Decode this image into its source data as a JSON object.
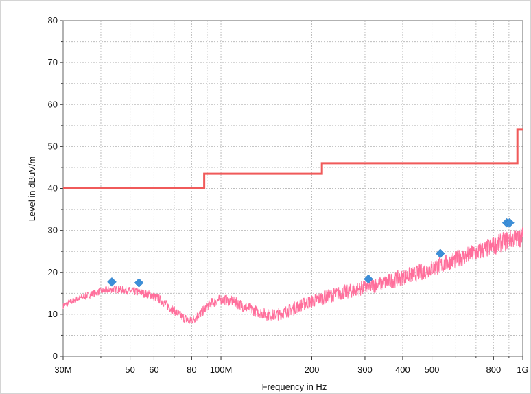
{
  "chart_data": {
    "type": "line",
    "title": "",
    "xlabel": "Frequency in Hz",
    "ylabel": "Level in dBuV/m",
    "x_scale": "log",
    "x_range_hz": [
      30000000,
      1000000000
    ],
    "ylim": [
      0,
      80
    ],
    "grid": true,
    "x_tick_labels": [
      {
        "value": 30000000,
        "label": "30M"
      },
      {
        "value": 50000000,
        "label": "50"
      },
      {
        "value": 60000000,
        "label": "60"
      },
      {
        "value": 80000000,
        "label": "80"
      },
      {
        "value": 100000000,
        "label": "100M"
      },
      {
        "value": 200000000,
        "label": "200"
      },
      {
        "value": 300000000,
        "label": "300"
      },
      {
        "value": 400000000,
        "label": "400"
      },
      {
        "value": 500000000,
        "label": "500"
      },
      {
        "value": 800000000,
        "label": "800"
      },
      {
        "value": 1000000000,
        "label": "1G"
      }
    ],
    "x_minor_grid": [
      40000000,
      70000000,
      90000000,
      600000000,
      700000000,
      900000000
    ],
    "y_tick_labels": [
      {
        "value": 0,
        "label": "0"
      },
      {
        "value": 10,
        "label": "10"
      },
      {
        "value": 20,
        "label": "20"
      },
      {
        "value": 30,
        "label": "30"
      },
      {
        "value": 40,
        "label": "40"
      },
      {
        "value": 50,
        "label": "50"
      },
      {
        "value": 60,
        "label": "60"
      },
      {
        "value": 70,
        "label": "70"
      },
      {
        "value": 80,
        "label": "80"
      }
    ],
    "series": [
      {
        "kind": "limit",
        "color": "#f05a5a",
        "points": [
          [
            30000000,
            40
          ],
          [
            88000000,
            40
          ],
          [
            88000000,
            43.5
          ],
          [
            216000000,
            43.5
          ],
          [
            216000000,
            46
          ],
          [
            960000000,
            46
          ],
          [
            960000000,
            54
          ],
          [
            1000000000,
            54
          ]
        ]
      },
      {
        "kind": "measurement",
        "color": "#ff6f9c",
        "points": [
          [
            30000000,
            12
          ],
          [
            33000000,
            13.5
          ],
          [
            36000000,
            14.5
          ],
          [
            40000000,
            15.5
          ],
          [
            44000000,
            16
          ],
          [
            48000000,
            15.8
          ],
          [
            53000000,
            15.3
          ],
          [
            58000000,
            14.7
          ],
          [
            63000000,
            13.5
          ],
          [
            68000000,
            11.5
          ],
          [
            74000000,
            9.5
          ],
          [
            79000000,
            8.3
          ],
          [
            85000000,
            10
          ],
          [
            92000000,
            12.5
          ],
          [
            100000000,
            13.6
          ],
          [
            110000000,
            13
          ],
          [
            120000000,
            11.8
          ],
          [
            130000000,
            10.8
          ],
          [
            140000000,
            10
          ],
          [
            150000000,
            9.8
          ],
          [
            160000000,
            10.3
          ],
          [
            175000000,
            11.5
          ],
          [
            190000000,
            12.6
          ],
          [
            210000000,
            13.6
          ],
          [
            240000000,
            14.8
          ],
          [
            270000000,
            15.6
          ],
          [
            300000000,
            16.3
          ],
          [
            350000000,
            17.6
          ],
          [
            400000000,
            18.8
          ],
          [
            450000000,
            19.8
          ],
          [
            500000000,
            21
          ],
          [
            550000000,
            22
          ],
          [
            600000000,
            23.1
          ],
          [
            700000000,
            24.7
          ],
          [
            800000000,
            26.3
          ],
          [
            900000000,
            27.8
          ],
          [
            1000000000,
            28.5
          ]
        ],
        "noise_db": 1.2
      }
    ],
    "markers": {
      "color": "#3d8fd8",
      "points": [
        [
          43500000,
          17.7
        ],
        [
          53500000,
          17.5
        ],
        [
          308000000,
          18.4
        ],
        [
          533000000,
          24.5
        ],
        [
          885000000,
          31.8
        ],
        [
          905000000,
          31.8
        ]
      ]
    }
  }
}
